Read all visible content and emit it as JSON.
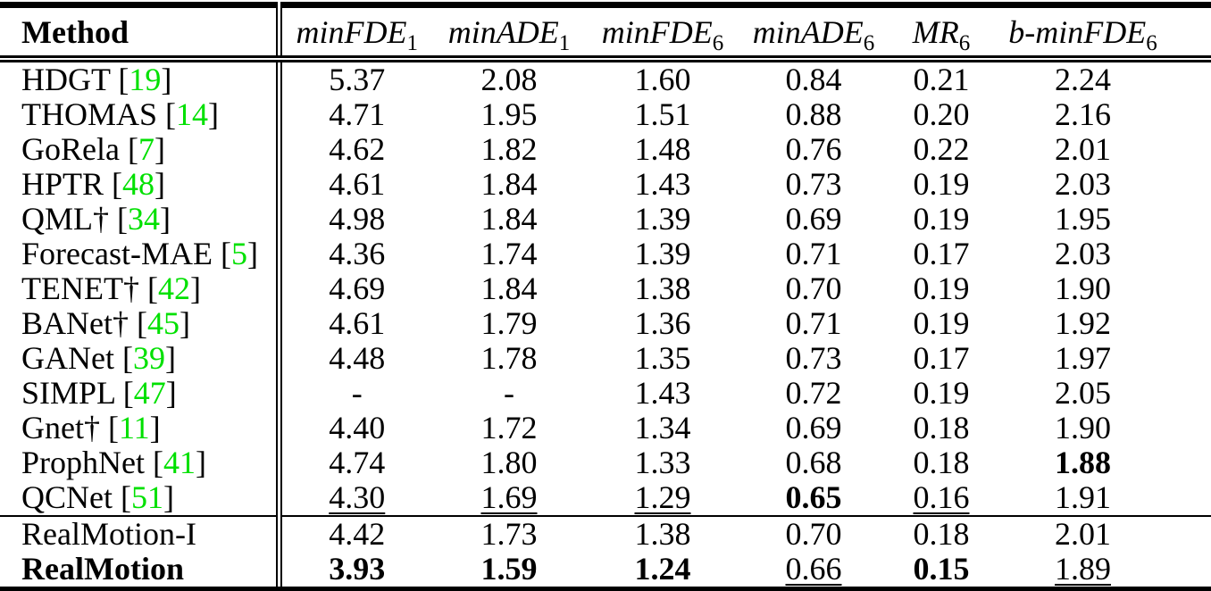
{
  "colors": {
    "citation_green": "#00E000",
    "text": "#000000",
    "background": "#ffffff",
    "rule": "#000000"
  },
  "table": {
    "header": {
      "method_label": "Method",
      "metrics": [
        {
          "name": "minFDE",
          "subscript": "1"
        },
        {
          "name": "minADE",
          "subscript": "1"
        },
        {
          "name": "minFDE",
          "subscript": "6"
        },
        {
          "name": "minADE",
          "subscript": "6"
        },
        {
          "name": "MR",
          "subscript": "6"
        },
        {
          "name": "b-minFDE",
          "subscript": "6"
        }
      ]
    },
    "rows": [
      {
        "method": "HDGT",
        "citation": "19",
        "bold_method": false,
        "separator_above": false,
        "cells": [
          {
            "text": "5.37",
            "style": "plain"
          },
          {
            "text": "2.08",
            "style": "plain"
          },
          {
            "text": "1.60",
            "style": "plain"
          },
          {
            "text": "0.84",
            "style": "plain"
          },
          {
            "text": "0.21",
            "style": "plain"
          },
          {
            "text": "2.24",
            "style": "plain"
          }
        ]
      },
      {
        "method": "THOMAS",
        "citation": "14",
        "bold_method": false,
        "separator_above": false,
        "cells": [
          {
            "text": "4.71",
            "style": "plain"
          },
          {
            "text": "1.95",
            "style": "plain"
          },
          {
            "text": "1.51",
            "style": "plain"
          },
          {
            "text": "0.88",
            "style": "plain"
          },
          {
            "text": "0.20",
            "style": "plain"
          },
          {
            "text": "2.16",
            "style": "plain"
          }
        ]
      },
      {
        "method": "GoRela",
        "citation": "7",
        "bold_method": false,
        "separator_above": false,
        "cells": [
          {
            "text": "4.62",
            "style": "plain"
          },
          {
            "text": "1.82",
            "style": "plain"
          },
          {
            "text": "1.48",
            "style": "plain"
          },
          {
            "text": "0.76",
            "style": "plain"
          },
          {
            "text": "0.22",
            "style": "plain"
          },
          {
            "text": "2.01",
            "style": "plain"
          }
        ]
      },
      {
        "method": "HPTR",
        "citation": "48",
        "bold_method": false,
        "separator_above": false,
        "cells": [
          {
            "text": "4.61",
            "style": "plain"
          },
          {
            "text": "1.84",
            "style": "plain"
          },
          {
            "text": "1.43",
            "style": "plain"
          },
          {
            "text": "0.73",
            "style": "plain"
          },
          {
            "text": "0.19",
            "style": "plain"
          },
          {
            "text": "2.03",
            "style": "plain"
          }
        ]
      },
      {
        "method": "QML†",
        "citation": "34",
        "bold_method": false,
        "separator_above": false,
        "cells": [
          {
            "text": "4.98",
            "style": "plain"
          },
          {
            "text": "1.84",
            "style": "plain"
          },
          {
            "text": "1.39",
            "style": "plain"
          },
          {
            "text": "0.69",
            "style": "plain"
          },
          {
            "text": "0.19",
            "style": "plain"
          },
          {
            "text": "1.95",
            "style": "plain"
          }
        ]
      },
      {
        "method": "Forecast-MAE",
        "citation": "5",
        "bold_method": false,
        "separator_above": false,
        "cells": [
          {
            "text": "4.36",
            "style": "plain"
          },
          {
            "text": "1.74",
            "style": "plain"
          },
          {
            "text": "1.39",
            "style": "plain"
          },
          {
            "text": "0.71",
            "style": "plain"
          },
          {
            "text": "0.17",
            "style": "plain"
          },
          {
            "text": "2.03",
            "style": "plain"
          }
        ]
      },
      {
        "method": "TENET†",
        "citation": "42",
        "bold_method": false,
        "separator_above": false,
        "cells": [
          {
            "text": "4.69",
            "style": "plain"
          },
          {
            "text": "1.84",
            "style": "plain"
          },
          {
            "text": "1.38",
            "style": "plain"
          },
          {
            "text": "0.70",
            "style": "plain"
          },
          {
            "text": "0.19",
            "style": "plain"
          },
          {
            "text": "1.90",
            "style": "plain"
          }
        ]
      },
      {
        "method": "BANet†",
        "citation": "45",
        "bold_method": false,
        "separator_above": false,
        "cells": [
          {
            "text": "4.61",
            "style": "plain"
          },
          {
            "text": "1.79",
            "style": "plain"
          },
          {
            "text": "1.36",
            "style": "plain"
          },
          {
            "text": "0.71",
            "style": "plain"
          },
          {
            "text": "0.19",
            "style": "plain"
          },
          {
            "text": "1.92",
            "style": "plain"
          }
        ]
      },
      {
        "method": "GANet",
        "citation": "39",
        "bold_method": false,
        "separator_above": false,
        "cells": [
          {
            "text": "4.48",
            "style": "plain"
          },
          {
            "text": "1.78",
            "style": "plain"
          },
          {
            "text": "1.35",
            "style": "plain"
          },
          {
            "text": "0.73",
            "style": "plain"
          },
          {
            "text": "0.17",
            "style": "plain"
          },
          {
            "text": "1.97",
            "style": "plain"
          }
        ]
      },
      {
        "method": "SIMPL",
        "citation": "47",
        "bold_method": false,
        "separator_above": false,
        "cells": [
          {
            "text": "-",
            "style": "plain"
          },
          {
            "text": "-",
            "style": "plain"
          },
          {
            "text": "1.43",
            "style": "plain"
          },
          {
            "text": "0.72",
            "style": "plain"
          },
          {
            "text": "0.19",
            "style": "plain"
          },
          {
            "text": "2.05",
            "style": "plain"
          }
        ]
      },
      {
        "method": "Gnet†",
        "citation": "11",
        "bold_method": false,
        "separator_above": false,
        "cells": [
          {
            "text": "4.40",
            "style": "plain"
          },
          {
            "text": "1.72",
            "style": "plain"
          },
          {
            "text": "1.34",
            "style": "plain"
          },
          {
            "text": "0.69",
            "style": "plain"
          },
          {
            "text": "0.18",
            "style": "plain"
          },
          {
            "text": "1.90",
            "style": "plain"
          }
        ]
      },
      {
        "method": "ProphNet",
        "citation": "41",
        "bold_method": false,
        "separator_above": false,
        "cells": [
          {
            "text": "4.74",
            "style": "plain"
          },
          {
            "text": "1.80",
            "style": "plain"
          },
          {
            "text": "1.33",
            "style": "plain"
          },
          {
            "text": "0.68",
            "style": "plain"
          },
          {
            "text": "0.18",
            "style": "plain"
          },
          {
            "text": "1.88",
            "style": "bold"
          }
        ]
      },
      {
        "method": "QCNet",
        "citation": "51",
        "bold_method": false,
        "separator_above": false,
        "cells": [
          {
            "text": "4.30",
            "style": "underline"
          },
          {
            "text": "1.69",
            "style": "underline"
          },
          {
            "text": "1.29",
            "style": "underline"
          },
          {
            "text": "0.65",
            "style": "bold"
          },
          {
            "text": "0.16",
            "style": "underline"
          },
          {
            "text": "1.91",
            "style": "plain"
          }
        ]
      },
      {
        "method": "RealMotion-I",
        "citation": null,
        "bold_method": false,
        "separator_above": true,
        "cells": [
          {
            "text": "4.42",
            "style": "plain"
          },
          {
            "text": "1.73",
            "style": "plain"
          },
          {
            "text": "1.38",
            "style": "plain"
          },
          {
            "text": "0.70",
            "style": "plain"
          },
          {
            "text": "0.18",
            "style": "plain"
          },
          {
            "text": "2.01",
            "style": "plain"
          }
        ]
      },
      {
        "method": "RealMotion",
        "citation": null,
        "bold_method": true,
        "separator_above": false,
        "cells": [
          {
            "text": "3.93",
            "style": "bold"
          },
          {
            "text": "1.59",
            "style": "bold"
          },
          {
            "text": "1.24",
            "style": "bold"
          },
          {
            "text": "0.66",
            "style": "underline"
          },
          {
            "text": "0.15",
            "style": "bold"
          },
          {
            "text": "1.89",
            "style": "underline"
          }
        ]
      }
    ]
  }
}
